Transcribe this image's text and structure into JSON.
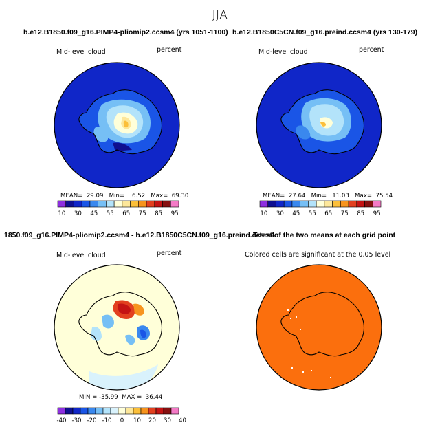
{
  "page_title": "JJA",
  "colors": {
    "absolute_scale": [
      "#8e2fe0",
      "#0f0f90",
      "#1026c8",
      "#1a55e6",
      "#3a88ee",
      "#76bff5",
      "#b3e3fa",
      "#ffffd9",
      "#fde79a",
      "#fbbf3a",
      "#f7941d",
      "#e2401f",
      "#c41313",
      "#861010",
      "#f47ac6"
    ],
    "difference_scale": [
      "#8e2fe0",
      "#0f0f90",
      "#1026c8",
      "#1a55e6",
      "#3a88ee",
      "#76bff5",
      "#b3e3fa",
      "#d9f2fc",
      "#ffffd9",
      "#fde79a",
      "#fbbf3a",
      "#f7941d",
      "#e2401f",
      "#c41313",
      "#861010",
      "#f47ac6"
    ],
    "significance": "#fb6f0d"
  },
  "panels": [
    {
      "title": "b.e12.B1850.f09_g16.PIMP4-pliomip2.ccsm4 (yrs 1051-1100)",
      "variable": "Mid-level cloud",
      "units": "percent",
      "stats": "MEAN=  29.09   Min=    6.52   Max=  69.30",
      "colorbar_labels": [
        "10",
        "30",
        "45",
        "55",
        "65",
        "75",
        "85",
        "95"
      ]
    },
    {
      "title": "b.e12.B1850C5CN.f09_g16.preind.ccsm4 (yrs 130-179)",
      "variable": "Mid-level cloud",
      "units": "percent",
      "stats": "MEAN=  27.64   Min=   11.03   Max=  75.54",
      "colorbar_labels": [
        "10",
        "30",
        "45",
        "55",
        "65",
        "75",
        "85",
        "95"
      ]
    },
    {
      "title": "1850.f09_g16.PIMP4-pliomip2.ccsm4 - b.e12.B1850C5CN.f09_g16.preind.ccsm4",
      "variable": "Mid-level cloud",
      "units": "percent",
      "stats": "MIN = -35.99  MAX =  36.44",
      "colorbar_labels": [
        "-40",
        "-30",
        "-20",
        "-10",
        "0",
        "10",
        "20",
        "30",
        "40"
      ]
    },
    {
      "title": "T-test of the two means at each grid point",
      "note": "Colored cells are significant at the 0.05 level"
    }
  ]
}
